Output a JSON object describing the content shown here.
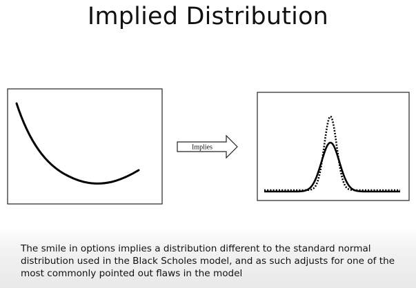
{
  "slide": {
    "title": "Implied Distribution",
    "arrow_label": "Implies",
    "caption": "The smile in options implies a distribution different to the standard normal distribution used in the Black Scholes model, and as such adjusts for one of the most commonly pointed out flaws in the model"
  },
  "colors": {
    "text": "#111111",
    "line": "#000000",
    "panel_border": "#222222"
  }
}
